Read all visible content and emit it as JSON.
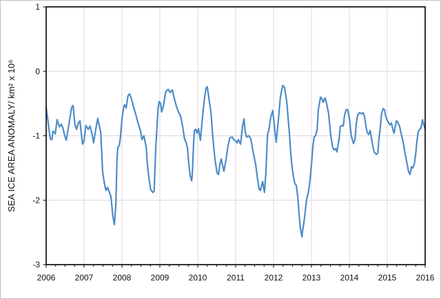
{
  "chart_data": {
    "type": "line",
    "title": "",
    "xlabel": "",
    "ylabel": "SEA ICE AREA ANOMALY/ km² x 10⁶",
    "xlim": [
      2006,
      2016
    ],
    "ylim": [
      -3,
      1
    ],
    "x_tick_labels": [
      "2006",
      "2007",
      "2008",
      "2009",
      "2010",
      "2011",
      "2012",
      "2013",
      "2014",
      "2015",
      "2016"
    ],
    "x_ticks": [
      2006,
      2007,
      2008,
      2009,
      2010,
      2011,
      2012,
      2013,
      2014,
      2015,
      2016
    ],
    "y_tick_labels": [
      "1",
      "0",
      "-1",
      "-2",
      "-3"
    ],
    "y_ticks": [
      1,
      0,
      -1,
      -2,
      -3
    ],
    "h_gridlines": [
      0,
      -1,
      -2
    ],
    "v_gridlines": [
      2007,
      2008,
      2009,
      2010,
      2011,
      2012,
      2013,
      2014,
      2015
    ],
    "minor_x_tick_step": 0.25,
    "grid_color": "#d9d9d9",
    "axis_color": "#000000",
    "line_color": "#4e8bc8",
    "legend": "none",
    "series": [
      {
        "name": "sea-ice-area-anomaly",
        "points": [
          [
            2006.0,
            -0.56
          ],
          [
            2006.05,
            -0.78
          ],
          [
            2006.11,
            -1.05
          ],
          [
            2006.15,
            -1.06
          ],
          [
            2006.18,
            -0.93
          ],
          [
            2006.24,
            -0.97
          ],
          [
            2006.29,
            -0.75
          ],
          [
            2006.35,
            -0.86
          ],
          [
            2006.4,
            -0.82
          ],
          [
            2006.44,
            -0.88
          ],
          [
            2006.49,
            -1.0
          ],
          [
            2006.53,
            -1.07
          ],
          [
            2006.58,
            -0.9
          ],
          [
            2006.62,
            -0.75
          ],
          [
            2006.67,
            -0.56
          ],
          [
            2006.71,
            -0.53
          ],
          [
            2006.76,
            -0.83
          ],
          [
            2006.8,
            -0.9
          ],
          [
            2006.85,
            -0.8
          ],
          [
            2006.89,
            -0.77
          ],
          [
            2006.93,
            -0.98
          ],
          [
            2006.96,
            -1.13
          ],
          [
            2007.0,
            -1.08
          ],
          [
            2007.05,
            -0.84
          ],
          [
            2007.11,
            -0.9
          ],
          [
            2007.16,
            -0.85
          ],
          [
            2007.22,
            -1.0
          ],
          [
            2007.25,
            -1.11
          ],
          [
            2007.31,
            -0.9
          ],
          [
            2007.36,
            -0.73
          ],
          [
            2007.44,
            -0.95
          ],
          [
            2007.49,
            -1.57
          ],
          [
            2007.55,
            -1.78
          ],
          [
            2007.58,
            -1.85
          ],
          [
            2007.62,
            -1.8
          ],
          [
            2007.67,
            -1.88
          ],
          [
            2007.71,
            -1.95
          ],
          [
            2007.76,
            -2.25
          ],
          [
            2007.8,
            -2.38
          ],
          [
            2007.84,
            -2.05
          ],
          [
            2007.87,
            -1.35
          ],
          [
            2007.89,
            -1.18
          ],
          [
            2007.93,
            -1.15
          ],
          [
            2007.96,
            -1.02
          ],
          [
            2008.0,
            -0.74
          ],
          [
            2008.05,
            -0.54
          ],
          [
            2008.07,
            -0.52
          ],
          [
            2008.11,
            -0.57
          ],
          [
            2008.16,
            -0.38
          ],
          [
            2008.2,
            -0.35
          ],
          [
            2008.24,
            -0.41
          ],
          [
            2008.27,
            -0.47
          ],
          [
            2008.31,
            -0.56
          ],
          [
            2008.36,
            -0.66
          ],
          [
            2008.42,
            -0.79
          ],
          [
            2008.49,
            -0.93
          ],
          [
            2008.53,
            -1.06
          ],
          [
            2008.58,
            -1.0
          ],
          [
            2008.64,
            -1.18
          ],
          [
            2008.67,
            -1.44
          ],
          [
            2008.71,
            -1.66
          ],
          [
            2008.76,
            -1.84
          ],
          [
            2008.82,
            -1.88
          ],
          [
            2008.85,
            -1.86
          ],
          [
            2008.89,
            -1.2
          ],
          [
            2008.95,
            -0.59
          ],
          [
            2008.98,
            -0.47
          ],
          [
            2009.02,
            -0.5
          ],
          [
            2009.05,
            -0.63
          ],
          [
            2009.09,
            -0.55
          ],
          [
            2009.13,
            -0.4
          ],
          [
            2009.16,
            -0.31
          ],
          [
            2009.22,
            -0.28
          ],
          [
            2009.27,
            -0.33
          ],
          [
            2009.33,
            -0.29
          ],
          [
            2009.38,
            -0.42
          ],
          [
            2009.44,
            -0.55
          ],
          [
            2009.49,
            -0.63
          ],
          [
            2009.55,
            -0.7
          ],
          [
            2009.6,
            -0.85
          ],
          [
            2009.65,
            -1.05
          ],
          [
            2009.69,
            -1.1
          ],
          [
            2009.73,
            -1.2
          ],
          [
            2009.76,
            -1.42
          ],
          [
            2009.8,
            -1.62
          ],
          [
            2009.84,
            -1.7
          ],
          [
            2009.86,
            -1.55
          ],
          [
            2009.89,
            -1.1
          ],
          [
            2009.91,
            -0.92
          ],
          [
            2009.95,
            -0.9
          ],
          [
            2009.98,
            -0.96
          ],
          [
            2010.02,
            -0.89
          ],
          [
            2010.07,
            -1.07
          ],
          [
            2010.13,
            -0.68
          ],
          [
            2010.18,
            -0.4
          ],
          [
            2010.22,
            -0.26
          ],
          [
            2010.25,
            -0.24
          ],
          [
            2010.29,
            -0.4
          ],
          [
            2010.35,
            -0.64
          ],
          [
            2010.4,
            -1.04
          ],
          [
            2010.45,
            -1.35
          ],
          [
            2010.51,
            -1.58
          ],
          [
            2010.55,
            -1.6
          ],
          [
            2010.58,
            -1.45
          ],
          [
            2010.62,
            -1.36
          ],
          [
            2010.65,
            -1.45
          ],
          [
            2010.69,
            -1.55
          ],
          [
            2010.75,
            -1.35
          ],
          [
            2010.8,
            -1.15
          ],
          [
            2010.85,
            -1.03
          ],
          [
            2010.91,
            -1.02
          ],
          [
            2010.95,
            -1.06
          ],
          [
            2011.0,
            -1.08
          ],
          [
            2011.04,
            -1.11
          ],
          [
            2011.07,
            -1.06
          ],
          [
            2011.13,
            -1.13
          ],
          [
            2011.18,
            -0.85
          ],
          [
            2011.22,
            -0.74
          ],
          [
            2011.25,
            -0.93
          ],
          [
            2011.29,
            -1.02
          ],
          [
            2011.35,
            -1.0
          ],
          [
            2011.4,
            -1.05
          ],
          [
            2011.45,
            -1.22
          ],
          [
            2011.53,
            -1.45
          ],
          [
            2011.58,
            -1.68
          ],
          [
            2011.62,
            -1.83
          ],
          [
            2011.65,
            -1.85
          ],
          [
            2011.71,
            -1.71
          ],
          [
            2011.76,
            -1.88
          ],
          [
            2011.8,
            -1.55
          ],
          [
            2011.84,
            -0.98
          ],
          [
            2011.87,
            -0.93
          ],
          [
            2011.93,
            -0.7
          ],
          [
            2011.98,
            -0.61
          ],
          [
            2012.04,
            -0.95
          ],
          [
            2012.07,
            -1.1
          ],
          [
            2012.13,
            -0.73
          ],
          [
            2012.18,
            -0.4
          ],
          [
            2012.24,
            -0.22
          ],
          [
            2012.29,
            -0.25
          ],
          [
            2012.35,
            -0.47
          ],
          [
            2012.38,
            -0.7
          ],
          [
            2012.42,
            -0.97
          ],
          [
            2012.45,
            -1.25
          ],
          [
            2012.49,
            -1.5
          ],
          [
            2012.53,
            -1.65
          ],
          [
            2012.56,
            -1.74
          ],
          [
            2012.6,
            -1.77
          ],
          [
            2012.64,
            -1.95
          ],
          [
            2012.67,
            -2.2
          ],
          [
            2012.71,
            -2.45
          ],
          [
            2012.75,
            -2.57
          ],
          [
            2012.76,
            -2.5
          ],
          [
            2012.8,
            -2.35
          ],
          [
            2012.84,
            -2.15
          ],
          [
            2012.87,
            -2.0
          ],
          [
            2012.91,
            -1.9
          ],
          [
            2012.95,
            -1.75
          ],
          [
            2013.0,
            -1.45
          ],
          [
            2013.04,
            -1.15
          ],
          [
            2013.07,
            -1.02
          ],
          [
            2013.11,
            -1.0
          ],
          [
            2013.15,
            -0.9
          ],
          [
            2013.18,
            -0.6
          ],
          [
            2013.24,
            -0.4
          ],
          [
            2013.27,
            -0.42
          ],
          [
            2013.31,
            -0.48
          ],
          [
            2013.36,
            -0.41
          ],
          [
            2013.4,
            -0.5
          ],
          [
            2013.45,
            -0.65
          ],
          [
            2013.51,
            -1.0
          ],
          [
            2013.56,
            -1.18
          ],
          [
            2013.6,
            -1.22
          ],
          [
            2013.64,
            -1.2
          ],
          [
            2013.67,
            -1.25
          ],
          [
            2013.73,
            -1.05
          ],
          [
            2013.76,
            -0.86
          ],
          [
            2013.8,
            -0.84
          ],
          [
            2013.84,
            -0.85
          ],
          [
            2013.87,
            -0.7
          ],
          [
            2013.91,
            -0.6
          ],
          [
            2013.95,
            -0.59
          ],
          [
            2014.0,
            -0.72
          ],
          [
            2014.05,
            -1.0
          ],
          [
            2014.11,
            -1.12
          ],
          [
            2014.15,
            -1.05
          ],
          [
            2014.18,
            -0.82
          ],
          [
            2014.22,
            -0.68
          ],
          [
            2014.27,
            -0.64
          ],
          [
            2014.33,
            -0.66
          ],
          [
            2014.36,
            -0.64
          ],
          [
            2014.4,
            -0.7
          ],
          [
            2014.44,
            -0.86
          ],
          [
            2014.47,
            -0.95
          ],
          [
            2014.51,
            -0.98
          ],
          [
            2014.55,
            -0.92
          ],
          [
            2014.6,
            -1.1
          ],
          [
            2014.65,
            -1.25
          ],
          [
            2014.71,
            -1.29
          ],
          [
            2014.75,
            -1.27
          ],
          [
            2014.78,
            -1.05
          ],
          [
            2014.82,
            -0.85
          ],
          [
            2014.85,
            -0.66
          ],
          [
            2014.89,
            -0.58
          ],
          [
            2014.93,
            -0.6
          ],
          [
            2014.96,
            -0.7
          ],
          [
            2015.0,
            -0.76
          ],
          [
            2015.04,
            -0.8
          ],
          [
            2015.07,
            -0.83
          ],
          [
            2015.11,
            -0.8
          ],
          [
            2015.15,
            -0.91
          ],
          [
            2015.18,
            -0.96
          ],
          [
            2015.24,
            -0.77
          ],
          [
            2015.27,
            -0.78
          ],
          [
            2015.33,
            -0.86
          ],
          [
            2015.36,
            -0.95
          ],
          [
            2015.42,
            -1.1
          ],
          [
            2015.47,
            -1.28
          ],
          [
            2015.53,
            -1.45
          ],
          [
            2015.56,
            -1.55
          ],
          [
            2015.6,
            -1.6
          ],
          [
            2015.64,
            -1.48
          ],
          [
            2015.67,
            -1.5
          ],
          [
            2015.71,
            -1.45
          ],
          [
            2015.75,
            -1.28
          ],
          [
            2015.78,
            -1.1
          ],
          [
            2015.82,
            -0.93
          ],
          [
            2015.85,
            -0.91
          ],
          [
            2015.89,
            -0.88
          ],
          [
            2015.93,
            -0.75
          ],
          [
            2015.96,
            -0.82
          ],
          [
            2016.0,
            -0.9
          ]
        ]
      }
    ]
  }
}
